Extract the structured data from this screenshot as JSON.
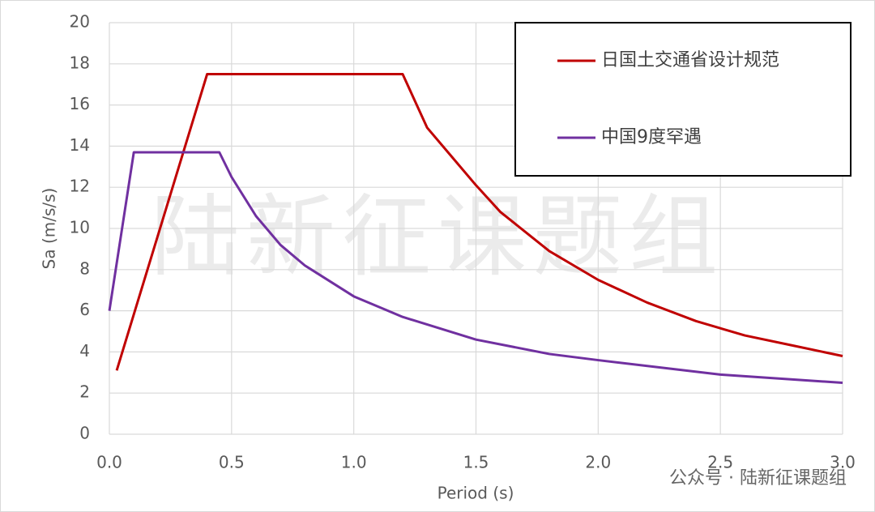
{
  "chart_data": {
    "type": "line",
    "x_label": "Period (s)",
    "y_label": "Sa (m/s/s)",
    "xlim": [
      0,
      3
    ],
    "ylim": [
      0,
      20
    ],
    "xticks": [
      {
        "value": 0,
        "label": "0.0"
      },
      0.5,
      {
        "value": 1,
        "label": "1.0"
      },
      1.5,
      {
        "value": 2,
        "label": "2.0"
      },
      2.5,
      {
        "value": 3,
        "label": "3.0"
      }
    ],
    "yticks": [
      0,
      2,
      4,
      6,
      8,
      10,
      12,
      14,
      16,
      18,
      20
    ],
    "grid": true,
    "legend": "upper right",
    "watermark": "陆新征课题组",
    "footer": "公众号 · 陆新征课题组",
    "series": [
      {
        "name": "日国土交通省设计规范",
        "color": "#c00000",
        "x": [
          0.03,
          0.4,
          1.2,
          1.3,
          1.4,
          1.5,
          1.6,
          1.8,
          2.0,
          2.2,
          2.4,
          2.6,
          2.8,
          3.0
        ],
        "values": [
          3.1,
          17.5,
          17.5,
          14.9,
          13.5,
          12.1,
          10.8,
          8.9,
          7.5,
          6.4,
          5.5,
          4.8,
          4.3,
          3.8
        ]
      },
      {
        "name": "中国9度罕遇",
        "color": "#7030a0",
        "x": [
          0,
          0.1,
          0.45,
          0.5,
          0.6,
          0.7,
          0.8,
          1.0,
          1.2,
          1.5,
          1.8,
          2.0,
          2.5,
          3.0
        ],
        "values": [
          6.0,
          13.7,
          13.7,
          12.5,
          10.6,
          9.2,
          8.2,
          6.7,
          5.7,
          4.6,
          3.9,
          3.6,
          2.9,
          2.5
        ]
      }
    ]
  }
}
